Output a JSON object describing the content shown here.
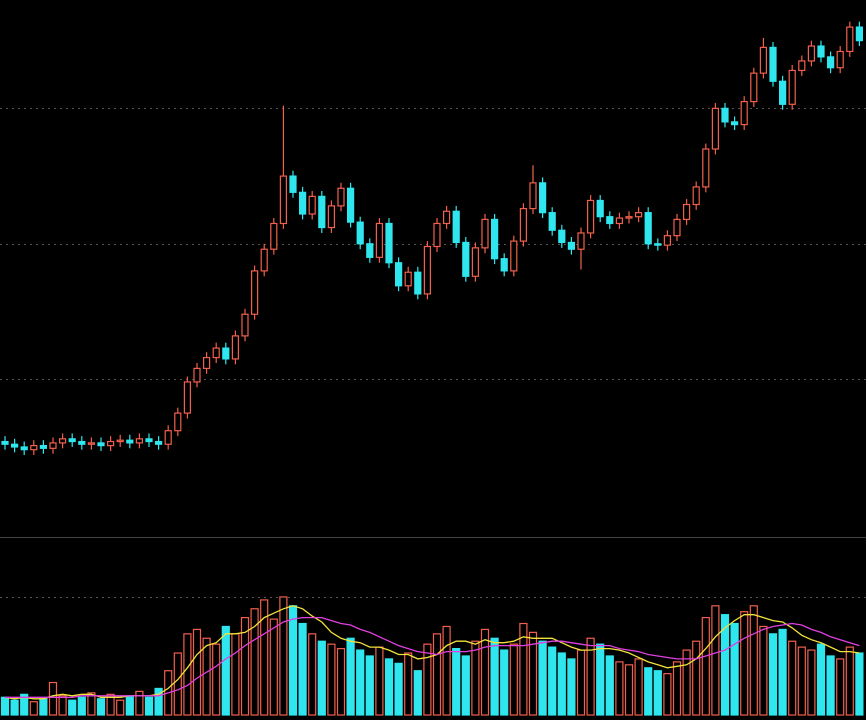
{
  "chart_data": [
    {
      "type": "candlestick",
      "up_color": "#f2604c",
      "down_color": "#2fe6ee",
      "ylim": [
        8.5,
        48
      ],
      "yticks": [
        20,
        30,
        40
      ],
      "grid": true,
      "open": [
        15.4,
        15.2,
        15.0,
        14.8,
        15.1,
        14.9,
        15.3,
        15.6,
        15.4,
        15.2,
        15.3,
        15.1,
        15.4,
        15.5,
        15.3,
        15.6,
        15.4,
        15.2,
        16.2,
        17.5,
        19.8,
        20.8,
        21.6,
        22.3,
        21.5,
        23.2,
        24.8,
        28.0,
        29.6,
        31.5,
        35.0,
        33.8,
        32.2,
        33.5,
        31.2,
        32.8,
        34.1,
        31.6,
        30.0,
        29.0,
        31.5,
        28.6,
        26.9,
        27.9,
        26.3,
        29.8,
        31.5,
        32.4,
        30.1,
        27.6,
        29.7,
        31.8,
        28.9,
        28.0,
        30.2,
        32.6,
        34.5,
        32.3,
        31.0,
        30.1,
        29.6,
        30.8,
        33.2,
        32.0,
        31.5,
        31.9,
        32.0,
        32.3,
        30.0,
        29.9,
        30.6,
        31.8,
        32.9,
        34.2,
        37.0,
        40.0,
        39.0,
        38.8,
        40.5,
        42.6,
        44.5,
        42.0,
        40.3,
        42.8,
        43.5,
        44.6,
        43.8,
        43.0,
        44.2,
        46.0
      ],
      "high": [
        15.8,
        15.6,
        15.4,
        15.5,
        15.5,
        15.7,
        16.0,
        16.0,
        15.8,
        15.7,
        15.7,
        15.8,
        15.9,
        15.9,
        16.0,
        16.0,
        15.8,
        16.6,
        17.9,
        20.2,
        21.2,
        22.0,
        22.7,
        22.7,
        23.6,
        25.2,
        28.4,
        30.0,
        31.9,
        40.2,
        35.4,
        34.2,
        33.9,
        33.9,
        33.2,
        34.5,
        34.5,
        32.0,
        30.4,
        31.9,
        31.9,
        29.0,
        28.3,
        28.3,
        30.2,
        31.9,
        32.8,
        32.8,
        30.5,
        30.1,
        32.2,
        32.2,
        29.3,
        30.6,
        33.0,
        35.8,
        34.9,
        32.7,
        31.4,
        30.5,
        31.2,
        33.6,
        33.6,
        32.4,
        32.3,
        32.4,
        32.7,
        32.7,
        30.4,
        31.0,
        32.2,
        33.3,
        34.6,
        37.4,
        40.4,
        40.4,
        39.4,
        40.9,
        43.0,
        45.2,
        44.9,
        42.4,
        43.2,
        43.9,
        45.0,
        45.0,
        44.2,
        44.6,
        46.4,
        46.4
      ],
      "low": [
        14.8,
        14.6,
        14.4,
        14.4,
        14.5,
        14.5,
        14.9,
        15.0,
        14.8,
        14.8,
        14.7,
        14.7,
        15.0,
        14.9,
        14.9,
        15.0,
        14.8,
        14.8,
        15.8,
        17.1,
        19.4,
        20.4,
        21.2,
        21.1,
        21.1,
        22.8,
        24.4,
        27.6,
        29.2,
        31.1,
        33.4,
        31.8,
        31.8,
        30.8,
        30.8,
        32.4,
        31.2,
        29.6,
        28.6,
        28.6,
        28.2,
        26.5,
        26.5,
        25.9,
        25.9,
        29.4,
        31.1,
        29.7,
        27.2,
        27.2,
        29.3,
        28.5,
        27.6,
        27.6,
        29.8,
        32.2,
        31.9,
        30.6,
        29.7,
        29.2,
        28.1,
        30.4,
        31.6,
        31.1,
        31.1,
        31.5,
        31.6,
        29.6,
        29.5,
        29.5,
        30.2,
        31.4,
        32.5,
        33.8,
        36.6,
        38.6,
        38.4,
        38.4,
        40.1,
        42.2,
        41.6,
        39.9,
        39.9,
        42.4,
        43.1,
        43.4,
        42.6,
        42.6,
        43.8,
        44.6
      ],
      "close": [
        15.2,
        15.0,
        14.8,
        15.1,
        14.9,
        15.3,
        15.6,
        15.4,
        15.2,
        15.3,
        15.1,
        15.4,
        15.5,
        15.3,
        15.6,
        15.4,
        15.2,
        16.2,
        17.5,
        19.8,
        20.8,
        21.6,
        22.3,
        21.5,
        23.2,
        24.8,
        28.0,
        29.6,
        31.5,
        35.0,
        33.8,
        32.2,
        33.5,
        31.2,
        32.8,
        34.1,
        31.6,
        30.0,
        29.0,
        31.5,
        28.6,
        26.9,
        27.9,
        26.3,
        29.8,
        31.5,
        32.4,
        30.1,
        27.6,
        29.7,
        31.8,
        28.9,
        28.0,
        30.2,
        32.6,
        34.5,
        32.3,
        31.0,
        30.1,
        29.6,
        30.8,
        33.2,
        32.0,
        31.5,
        31.9,
        32.0,
        32.3,
        30.0,
        29.9,
        30.6,
        31.8,
        32.9,
        34.2,
        37.0,
        40.0,
        39.0,
        38.8,
        40.5,
        42.6,
        44.5,
        42.0,
        40.3,
        42.8,
        43.5,
        44.6,
        43.8,
        43.0,
        44.2,
        46.0,
        45.0
      ]
    },
    {
      "type": "bar",
      "ylim": [
        0,
        118.6
      ],
      "yticks": [
        80
      ],
      "grid": true,
      "values": [
        12,
        10,
        14,
        9,
        11,
        22,
        13,
        10,
        12,
        15,
        11,
        14,
        10,
        13,
        16,
        12,
        18,
        30,
        42,
        55,
        58,
        52,
        48,
        60,
        55,
        66,
        72,
        78,
        65,
        80,
        74,
        62,
        55,
        50,
        48,
        45,
        52,
        44,
        40,
        46,
        38,
        35,
        42,
        30,
        48,
        55,
        60,
        45,
        40,
        50,
        58,
        52,
        44,
        48,
        62,
        56,
        50,
        46,
        42,
        38,
        44,
        52,
        48,
        40,
        36,
        34,
        38,
        32,
        30,
        28,
        36,
        44,
        50,
        66,
        74,
        68,
        62,
        70,
        74,
        60,
        55,
        58,
        50,
        46,
        44,
        48,
        40,
        38,
        46,
        42
      ],
      "lines": [
        {
          "color": "#f2e23a",
          "values": [
            12,
            11,
            12,
            11,
            11,
            13,
            14,
            13,
            14,
            14,
            12,
            12,
            12,
            13,
            13,
            13,
            14,
            18,
            24,
            32,
            41,
            47,
            49,
            55,
            55,
            56,
            60,
            66,
            69,
            72,
            74,
            72,
            67,
            63,
            56,
            52,
            50,
            49,
            46,
            46,
            44,
            41,
            41,
            38,
            39,
            41,
            47,
            50,
            50,
            48,
            51,
            49,
            49,
            50,
            53,
            52,
            52,
            52,
            49,
            46,
            44,
            44,
            45,
            45,
            44,
            42,
            39,
            36,
            34,
            32,
            33,
            34,
            38,
            45,
            53,
            59,
            64,
            68,
            68,
            66,
            64,
            63,
            59,
            54,
            51,
            49,
            46,
            43,
            43,
            42
          ]
        },
        {
          "color": "#e040e0",
          "values": [
            12,
            12,
            12,
            12,
            12,
            12,
            12,
            12,
            13,
            13,
            13,
            13,
            13,
            13,
            13,
            13,
            13,
            15,
            17,
            20,
            25,
            29,
            33,
            38,
            42,
            47,
            51,
            55,
            59,
            63,
            65,
            66,
            66,
            66,
            64,
            62,
            61,
            58,
            56,
            53,
            50,
            47,
            45,
            43,
            42,
            41,
            43,
            43,
            43,
            44,
            46,
            47,
            47,
            47,
            47,
            48,
            49,
            50,
            50,
            49,
            48,
            47,
            47,
            47,
            45,
            44,
            43,
            41,
            40,
            39,
            38,
            38,
            38,
            40,
            42,
            44,
            48,
            52,
            55,
            58,
            60,
            61,
            62,
            61,
            58,
            56,
            53,
            51,
            49,
            47
          ]
        }
      ]
    }
  ]
}
